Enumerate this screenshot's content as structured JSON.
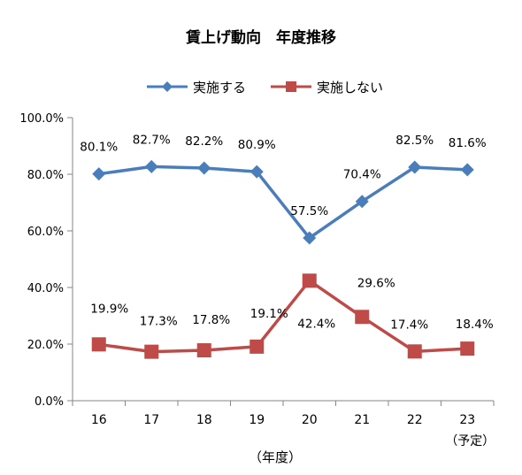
{
  "chart_data": {
    "type": "line",
    "title": "賃上げ動向　年度推移",
    "xlabel": "（年度）",
    "ylabel": "",
    "categories": [
      {
        "label": "16",
        "sub": ""
      },
      {
        "label": "17",
        "sub": ""
      },
      {
        "label": "18",
        "sub": ""
      },
      {
        "label": "19",
        "sub": ""
      },
      {
        "label": "20",
        "sub": ""
      },
      {
        "label": "21",
        "sub": ""
      },
      {
        "label": "22",
        "sub": ""
      },
      {
        "label": "23",
        "sub": "（予定）"
      }
    ],
    "ylim": [
      0,
      100
    ],
    "yticks": [
      "0.0%",
      "20.0%",
      "40.0%",
      "60.0%",
      "80.0%",
      "100.0%"
    ],
    "legend_position": "top",
    "grid": false,
    "series": [
      {
        "name": "実施する",
        "color": "#4a7ebb",
        "marker": "diamond",
        "values": [
          80.1,
          82.7,
          82.2,
          80.9,
          57.5,
          70.4,
          82.5,
          81.6
        ],
        "labels": [
          "80.1%",
          "82.7%",
          "82.2%",
          "80.9%",
          "57.5%",
          "70.4%",
          "82.5%",
          "81.6%"
        ]
      },
      {
        "name": "実施しない",
        "color": "#be4b48",
        "marker": "square",
        "values": [
          19.9,
          17.3,
          17.8,
          19.1,
          42.4,
          29.6,
          17.4,
          18.4
        ],
        "labels": [
          "19.9%",
          "17.3%",
          "17.8%",
          "19.1%",
          "42.4%",
          "29.6%",
          "17.4%",
          "18.4%"
        ]
      }
    ]
  }
}
